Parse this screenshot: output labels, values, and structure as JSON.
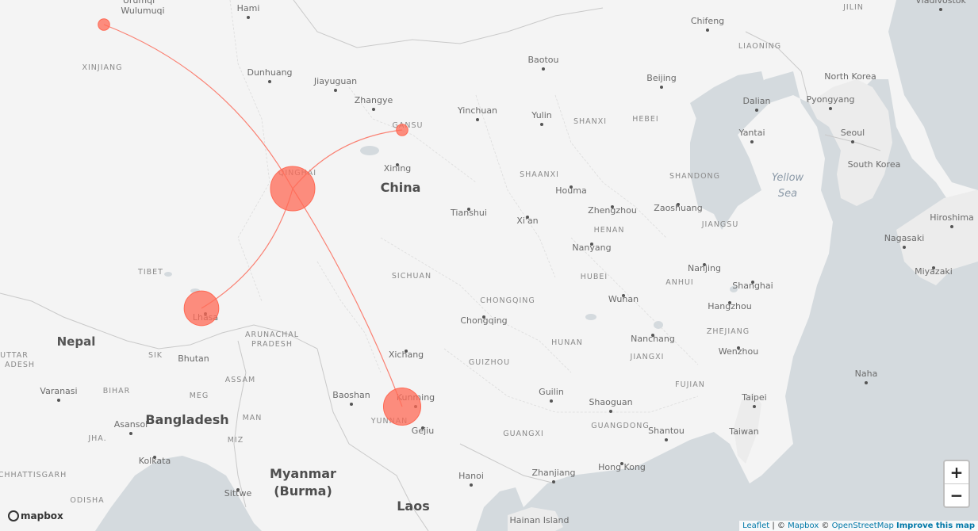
{
  "map": {
    "country_labels": [
      "China",
      "Nepal",
      "Bhutan",
      "Bangladesh",
      "Myanmar",
      "(Burma)",
      "Laos",
      "North Korea",
      "South Korea",
      "Taiwan"
    ],
    "province_labels": [
      "XINJIANG",
      "QINGHAI",
      "GANSU",
      "TIBET",
      "SICHUAN",
      "SHANXI",
      "HEBEI",
      "SHAANXI",
      "HENAN",
      "SHANDONG",
      "JIANGSU",
      "ANHUI",
      "HUBEI",
      "CHONGQING",
      "HUNAN",
      "ZHEJIANG",
      "JIANGXI",
      "GUIZHOU",
      "YUNNAN",
      "GUANGXI",
      "GUANGDONG",
      "FUJIAN",
      "LIAONING",
      "JILIN",
      "ARUNACHAL",
      "PRADESH",
      "ASSAM",
      "MEG",
      "MAN",
      "MIZ",
      "BIHAR",
      "JHA.",
      "CHHATTISGARH",
      "ODISHA",
      "UTTAR",
      "ADESH",
      "SIK"
    ],
    "city_labels": [
      "Ürümqi",
      "Wulumuqi",
      "Hami",
      "Dunhuang",
      "Jiayuguan",
      "Zhangye",
      "Baotou",
      "Chifeng",
      "Beijing",
      "Dalian",
      "Pyongyang",
      "Yinchuan",
      "Yulin",
      "Xining",
      "Yantai",
      "Seoul",
      "Tianshui",
      "Xi'an",
      "Houma",
      "Zhengzhou",
      "Zaoshuang",
      "Nanyang",
      "Nanjing",
      "Shanghai",
      "Hangzhou",
      "Wuhan",
      "Chongqing",
      "Nanchang",
      "Wenzhou",
      "Lhasa",
      "Xichang",
      "Kunming",
      "Baoshan",
      "Gejiu",
      "Guilin",
      "Shaoguan",
      "Shantou",
      "Taipei",
      "Zhanjiang",
      "Hong Kong",
      "Hanoi",
      "Hainan Island",
      "Varanasi",
      "Asansol",
      "Kolkata",
      "Sittwe",
      "Nagasaki",
      "Miyazaki",
      "Hiroshima",
      "Naha",
      "Vladivostok"
    ],
    "sea_labels": [
      "Yellow",
      "Sea"
    ],
    "route_color": "#fa8072",
    "circle_color": "#ff6a55",
    "points": [
      {
        "name": "Qinghai",
        "weight": 1.0
      },
      {
        "name": "Lhasa",
        "weight": 0.78
      },
      {
        "name": "Kunming",
        "weight": 0.84
      },
      {
        "name": "Gansu",
        "weight": 0.26
      },
      {
        "name": "Ürümqi",
        "weight": 0.26
      }
    ]
  },
  "controls": {
    "zoom_in": "+",
    "zoom_out": "−"
  },
  "attribution": {
    "leaflet": "Leaflet",
    "sep1": " | © ",
    "mapbox": "Mapbox",
    "sep2": " © ",
    "osm": "OpenStreetMap",
    "improve": "Improve this map"
  },
  "logo": {
    "text": "mapbox"
  }
}
